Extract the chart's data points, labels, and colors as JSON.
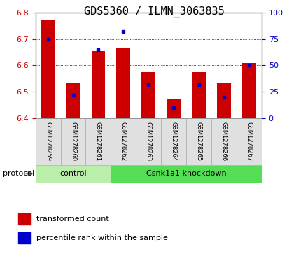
{
  "title": "GDS5360 / ILMN_3063835",
  "samples": [
    "GSM1278259",
    "GSM1278260",
    "GSM1278261",
    "GSM1278262",
    "GSM1278263",
    "GSM1278264",
    "GSM1278265",
    "GSM1278266",
    "GSM1278267"
  ],
  "transformed_counts": [
    6.77,
    6.535,
    6.655,
    6.668,
    6.575,
    6.47,
    6.575,
    6.535,
    6.61
  ],
  "percentile_ranks": [
    75,
    22,
    65,
    82,
    32,
    10,
    32,
    20,
    50
  ],
  "ylim": [
    6.4,
    6.8
  ],
  "yticks": [
    6.4,
    6.5,
    6.6,
    6.7,
    6.8
  ],
  "y2lim": [
    0,
    100
  ],
  "y2ticks": [
    0,
    25,
    50,
    75,
    100
  ],
  "bar_color": "#cc0000",
  "percentile_color": "#0000cc",
  "groups": [
    {
      "label": "control",
      "start": 0,
      "end": 3,
      "color": "#bbeeaa"
    },
    {
      "label": "Csnk1a1 knockdown",
      "start": 3,
      "end": 9,
      "color": "#55dd55"
    }
  ],
  "legend_entries": [
    {
      "label": "transformed count",
      "color": "#cc0000"
    },
    {
      "label": "percentile rank within the sample",
      "color": "#0000cc"
    }
  ],
  "protocol_label": "protocol",
  "title_fontsize": 11,
  "tick_fontsize": 8,
  "sample_fontsize": 6,
  "ylabel_left_color": "#cc0000",
  "ylabel_right_color": "#0000cc",
  "cell_facecolor": "#e0e0e0",
  "cell_edgecolor": "#aaaaaa"
}
